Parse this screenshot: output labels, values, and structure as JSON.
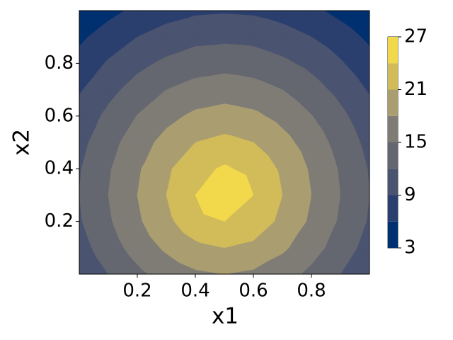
{
  "chart_data": {
    "type": "contour",
    "xlabel": "x1",
    "ylabel": "x2",
    "x": [
      0,
      0.1,
      0.2,
      0.3,
      0.4,
      0.5,
      0.6,
      0.7,
      0.8,
      0.9,
      1
    ],
    "y": [
      0,
      0.1,
      0.2,
      0.3,
      0.4,
      0.5,
      0.6,
      0.7,
      0.8,
      0.9,
      1
    ],
    "z": [
      [
        9.5,
        12,
        14.3,
        16.2,
        17.5,
        18,
        17.5,
        16.2,
        14.3,
        12,
        9.5
      ],
      [
        10.8,
        13.6,
        16.2,
        18.5,
        20.3,
        21,
        20.3,
        18.5,
        16.2,
        13.6,
        10.8
      ],
      [
        11.7,
        14.6,
        17.5,
        20.3,
        22.8,
        24,
        22.8,
        20.3,
        17.5,
        14.6,
        11.7
      ],
      [
        12,
        15,
        18,
        21,
        24,
        27,
        24,
        21,
        18,
        15,
        12
      ],
      [
        11.8,
        14.7,
        17.6,
        20.5,
        23,
        24.4,
        23,
        20.5,
        17.6,
        14.7,
        11.8
      ],
      [
        11.1,
        13.9,
        16.6,
        19,
        21,
        21.8,
        21,
        19,
        16.6,
        13.9,
        11.1
      ],
      [
        10.1,
        12.7,
        15.1,
        17.1,
        18.6,
        19.2,
        18.6,
        17.1,
        15.1,
        12.7,
        10.1
      ],
      [
        8.7,
        11.1,
        13.2,
        15,
        16.1,
        16.6,
        16.1,
        15,
        13.2,
        11.1,
        8.7
      ],
      [
        7.1,
        9.3,
        11.2,
        12.6,
        13.6,
        14,
        13.6,
        12.6,
        11.2,
        9.3,
        7.1
      ],
      [
        5.4,
        7.4,
        9,
        10.2,
        11.1,
        11.3,
        11.1,
        10.2,
        9,
        7.4,
        5.4
      ],
      [
        3.4,
        5.1,
        6.7,
        7.8,
        8.5,
        8.7,
        8.5,
        7.8,
        6.7,
        5.1,
        3.4
      ]
    ],
    "levels": [
      3,
      6,
      9,
      12,
      15,
      18,
      21,
      24,
      27
    ],
    "colors": [
      "#00306f",
      "#2b3f6e",
      "#4a536f",
      "#646670",
      "#7f7c76",
      "#aa9e70",
      "#d2bc59",
      "#f2d84b"
    ],
    "xlim": [
      0,
      1
    ],
    "ylim": [
      0,
      1
    ],
    "xticks": [
      0.2,
      0.4,
      0.6,
      0.8
    ],
    "yticks": [
      0.2,
      0.4,
      0.6,
      0.8
    ],
    "colorbar_ticks": [
      3,
      9,
      15,
      21,
      27
    ]
  }
}
